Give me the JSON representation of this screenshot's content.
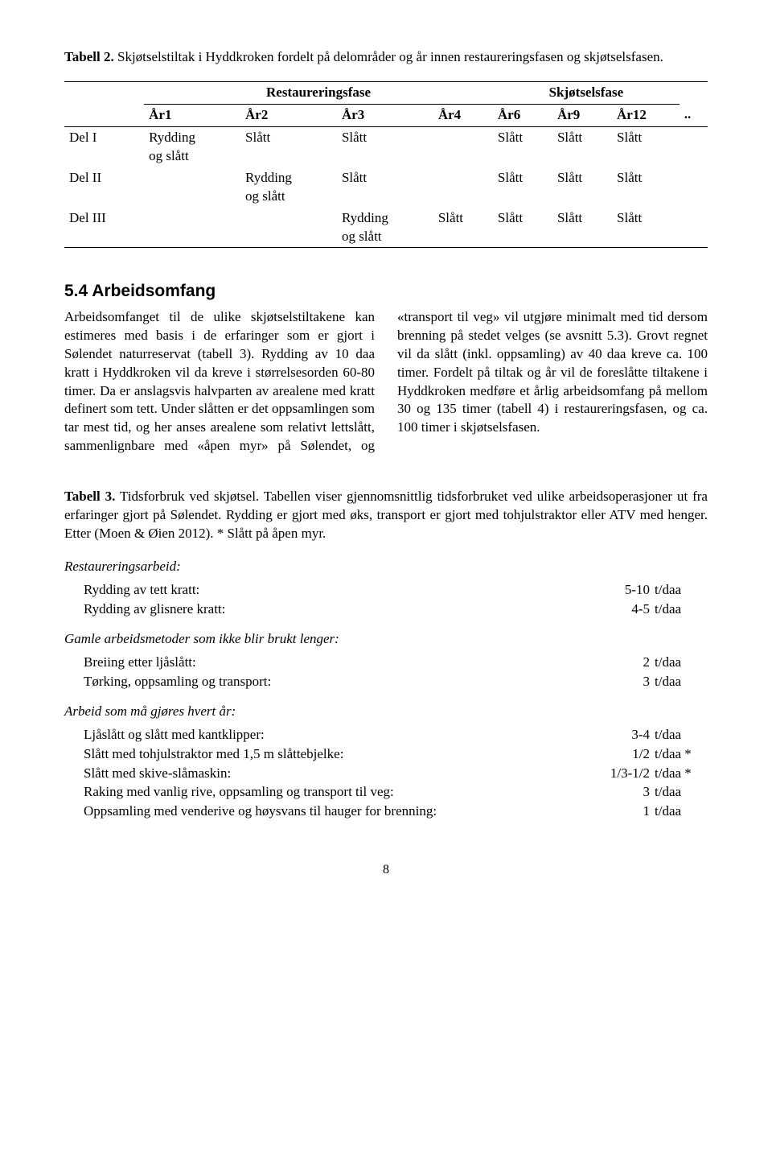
{
  "table2": {
    "caption_lead": "Tabell 2.",
    "caption_rest": " Skjøtselstiltak i Hyddkroken fordelt på delområder og år innen restaureringsfasen og skjøtselsfasen.",
    "phase1": "Restaureringsfase",
    "phase2": "Skjøtselsfase",
    "headers": [
      "",
      "År1",
      "År2",
      "År3",
      "År4",
      "År6",
      "År9",
      "År12",
      ".."
    ],
    "rows": [
      {
        "label": "Del I",
        "c1a": "Rydding",
        "c1b": "og slått",
        "c2a": "Slått",
        "c2b": "",
        "c3a": "Slått",
        "c3b": "",
        "c4": "",
        "c5": "Slått",
        "c6": "Slått",
        "c7": "Slått"
      },
      {
        "label": "Del II",
        "c1a": "",
        "c1b": "",
        "c2a": "Rydding",
        "c2b": "og slått",
        "c3a": "Slått",
        "c3b": "",
        "c4": "",
        "c5": "Slått",
        "c6": "Slått",
        "c7": "Slått"
      },
      {
        "label": "Del III",
        "c1a": "",
        "c1b": "",
        "c2a": "",
        "c2b": "",
        "c3a": "Rydding",
        "c3b": "og slått",
        "c4": "Slått",
        "c5": "Slått",
        "c6": "Slått",
        "c7": "Slått"
      }
    ]
  },
  "section54": {
    "heading": "5.4 Arbeidsomfang",
    "body": "Arbeidsomfanget til de ulike skjøtselstiltakene kan estimeres med basis i de erfaringer som er gjort i Sølendet naturreservat (tabell 3). Rydding av 10 daa kratt i Hyddkroken vil da kreve i størrelsesorden 60-80 timer. Da er anslagsvis halvparten av arealene med kratt definert som tett. Under slåtten er det oppsamlingen som tar mest tid, og her anses arealene som relativt lettslått, sammenlignbare med «åpen myr» på Sølendet, og «transport til veg» vil utgjøre minimalt med tid dersom brenning på stedet velges (se avsnitt 5.3). Grovt regnet vil da slått (inkl. oppsamling) av 40 daa kreve ca. 100 timer. Fordelt på tiltak og år vil de foreslåtte tiltakene i Hyddkroken medføre et årlig arbeidsomfang på mellom 30 og 135 timer (tabell 4) i restaureringsfasen, og ca. 100 timer i skjøtselsfasen."
  },
  "table3": {
    "caption_lead": "Tabell 3.",
    "caption_rest": " Tidsforbruk ved skjøtsel. Tabellen viser gjennomsnittlig tidsforbruket ved ulike arbeidsoperasjoner ut fra erfaringer gjort på Sølendet. Rydding er gjort med øks, transport er gjort med tohjulstraktor eller ATV med henger. Etter (Moen & Øien 2012). * Slått på åpen myr.",
    "groups": [
      {
        "title": "Restaureringsarbeid:",
        "items": [
          {
            "label": "Rydding av tett kratt:",
            "value": "5-10",
            "unit": "t/daa"
          },
          {
            "label": "Rydding av glisnere kratt:",
            "value": "4-5",
            "unit": "t/daa"
          }
        ]
      },
      {
        "title": "Gamle arbeidsmetoder som ikke blir brukt lenger:",
        "items": [
          {
            "label": "Breiing etter ljåslått:",
            "value": "2",
            "unit": "t/daa"
          },
          {
            "label": "Tørking, oppsamling og transport:",
            "value": "3",
            "unit": "t/daa"
          }
        ]
      },
      {
        "title": "Arbeid som må gjøres hvert år:",
        "items": [
          {
            "label": "Ljåslått og slått med kantklipper:",
            "value": "3-4",
            "unit": "t/daa"
          },
          {
            "label": "Slått med tohjulstraktor med 1,5 m slåttebjelke:",
            "value": "1/2",
            "unit": "t/daa *"
          },
          {
            "label": "Slått med skive-slåmaskin:",
            "value": "1/3-1/2",
            "unit": "t/daa *"
          },
          {
            "label": "Raking med vanlig rive, oppsamling og transport til veg:",
            "value": "3",
            "unit": "t/daa"
          },
          {
            "label": "Oppsamling med venderive og høysvans til hauger for brenning:",
            "value": "1",
            "unit": "t/daa"
          }
        ]
      }
    ]
  },
  "page_number": "8"
}
